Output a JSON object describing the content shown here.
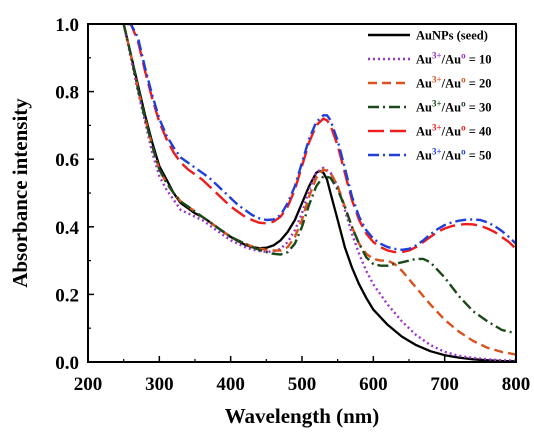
{
  "chart_data": {
    "type": "line",
    "title": "",
    "xlabel": "Wavelength (nm)",
    "ylabel": "Absorbance intensity",
    "xlim": [
      200,
      800
    ],
    "ylim": [
      0.0,
      1.0
    ],
    "xticks": [
      "200",
      "300",
      "400",
      "500",
      "600",
      "700",
      "800"
    ],
    "yticks": [
      "0.0",
      "0.2",
      "0.4",
      "0.6",
      "0.8",
      "1.0"
    ],
    "grid": false,
    "legend_position": "top-right",
    "series": [
      {
        "name": "AuNPs (seed)",
        "color": "#000000",
        "dash": "solid",
        "x": [
          250,
          260,
          270,
          280,
          290,
          300,
          310,
          320,
          330,
          340,
          350,
          360,
          370,
          380,
          390,
          400,
          410,
          420,
          430,
          440,
          450,
          460,
          470,
          480,
          490,
          500,
          510,
          520,
          525,
          530,
          535,
          540,
          550,
          560,
          570,
          580,
          590,
          600,
          620,
          640,
          660,
          680,
          700,
          720,
          740,
          760,
          780,
          800
        ],
        "y": [
          1.0,
          0.91,
          0.82,
          0.73,
          0.65,
          0.58,
          0.54,
          0.5,
          0.47,
          0.455,
          0.44,
          0.43,
          0.415,
          0.4,
          0.385,
          0.37,
          0.358,
          0.347,
          0.34,
          0.337,
          0.338,
          0.345,
          0.36,
          0.385,
          0.42,
          0.47,
          0.52,
          0.56,
          0.565,
          0.56,
          0.54,
          0.5,
          0.42,
          0.34,
          0.28,
          0.23,
          0.19,
          0.155,
          0.11,
          0.075,
          0.05,
          0.032,
          0.02,
          0.013,
          0.008,
          0.005,
          0.003,
          0.002
        ]
      },
      {
        "name": "Au3+/Auo = 10",
        "color": "#9933cc",
        "dash": "dot",
        "x": [
          250,
          260,
          270,
          280,
          290,
          300,
          310,
          320,
          330,
          340,
          350,
          360,
          370,
          380,
          390,
          400,
          410,
          420,
          430,
          440,
          450,
          460,
          470,
          480,
          490,
          500,
          510,
          520,
          530,
          540,
          550,
          560,
          570,
          580,
          590,
          600,
          620,
          640,
          660,
          680,
          700,
          720,
          740,
          760,
          780,
          800
        ],
        "y": [
          1.0,
          0.9,
          0.8,
          0.71,
          0.62,
          0.55,
          0.51,
          0.48,
          0.45,
          0.44,
          0.43,
          0.42,
          0.405,
          0.39,
          0.375,
          0.36,
          0.35,
          0.34,
          0.333,
          0.328,
          0.326,
          0.327,
          0.335,
          0.355,
          0.39,
          0.44,
          0.51,
          0.56,
          0.575,
          0.56,
          0.52,
          0.45,
          0.38,
          0.32,
          0.27,
          0.23,
          0.17,
          0.12,
          0.08,
          0.05,
          0.03,
          0.018,
          0.012,
          0.008,
          0.005,
          0.004
        ]
      },
      {
        "name": "Au3+/Auo = 20",
        "color": "#d9531e",
        "dash": "dash",
        "x": [
          250,
          260,
          270,
          280,
          290,
          300,
          310,
          320,
          330,
          340,
          350,
          360,
          370,
          380,
          390,
          400,
          410,
          420,
          430,
          440,
          450,
          460,
          470,
          480,
          490,
          500,
          510,
          520,
          530,
          540,
          550,
          560,
          570,
          580,
          590,
          600,
          610,
          620,
          630,
          640,
          650,
          660,
          680,
          700,
          720,
          740,
          760,
          780,
          800
        ],
        "y": [
          1.0,
          0.91,
          0.81,
          0.72,
          0.64,
          0.57,
          0.53,
          0.5,
          0.475,
          0.46,
          0.445,
          0.43,
          0.415,
          0.4,
          0.385,
          0.37,
          0.36,
          0.35,
          0.342,
          0.336,
          0.332,
          0.33,
          0.33,
          0.34,
          0.37,
          0.42,
          0.49,
          0.545,
          0.57,
          0.56,
          0.52,
          0.46,
          0.4,
          0.35,
          0.32,
          0.305,
          0.3,
          0.3,
          0.29,
          0.27,
          0.245,
          0.22,
          0.17,
          0.125,
          0.09,
          0.062,
          0.042,
          0.03,
          0.022
        ]
      },
      {
        "name": "Au3+/Auo = 30",
        "color": "#1a4a1a",
        "dash": "dashdot",
        "x": [
          250,
          260,
          270,
          280,
          290,
          300,
          310,
          320,
          330,
          340,
          350,
          360,
          370,
          380,
          390,
          400,
          410,
          420,
          430,
          440,
          450,
          460,
          470,
          480,
          490,
          500,
          510,
          520,
          530,
          540,
          550,
          560,
          570,
          580,
          590,
          600,
          610,
          620,
          630,
          640,
          650,
          660,
          670,
          680,
          700,
          720,
          740,
          760,
          780,
          800
        ],
        "y": [
          1.0,
          0.91,
          0.81,
          0.72,
          0.64,
          0.57,
          0.53,
          0.5,
          0.475,
          0.46,
          0.445,
          0.43,
          0.415,
          0.4,
          0.385,
          0.37,
          0.36,
          0.35,
          0.34,
          0.332,
          0.325,
          0.32,
          0.318,
          0.325,
          0.35,
          0.4,
          0.465,
          0.52,
          0.55,
          0.545,
          0.51,
          0.46,
          0.4,
          0.35,
          0.31,
          0.29,
          0.285,
          0.285,
          0.29,
          0.295,
          0.3,
          0.305,
          0.305,
          0.295,
          0.25,
          0.195,
          0.15,
          0.12,
          0.095,
          0.085
        ]
      },
      {
        "name": "Au3+/Auo = 40",
        "color": "#ee1c1c",
        "dash": "longdash",
        "x": [
          255,
          260,
          270,
          280,
          290,
          300,
          310,
          320,
          330,
          340,
          350,
          360,
          370,
          380,
          390,
          400,
          410,
          420,
          430,
          440,
          450,
          460,
          470,
          480,
          490,
          500,
          510,
          520,
          530,
          535,
          540,
          550,
          560,
          570,
          580,
          590,
          600,
          610,
          620,
          630,
          640,
          650,
          660,
          670,
          680,
          690,
          700,
          710,
          720,
          730,
          740,
          750,
          760,
          770,
          780,
          790,
          800
        ],
        "y": [
          1.0,
          1.0,
          0.95,
          0.86,
          0.78,
          0.71,
          0.66,
          0.62,
          0.59,
          0.57,
          0.555,
          0.54,
          0.52,
          0.5,
          0.48,
          0.46,
          0.445,
          0.43,
          0.42,
          0.412,
          0.41,
          0.415,
          0.43,
          0.46,
          0.51,
          0.58,
          0.65,
          0.7,
          0.72,
          0.715,
          0.7,
          0.64,
          0.56,
          0.48,
          0.42,
          0.38,
          0.355,
          0.34,
          0.33,
          0.325,
          0.325,
          0.33,
          0.34,
          0.355,
          0.37,
          0.385,
          0.395,
          0.402,
          0.406,
          0.408,
          0.407,
          0.403,
          0.395,
          0.385,
          0.37,
          0.355,
          0.335
        ]
      },
      {
        "name": "Au3+/Auo = 50",
        "color": "#1f3fd9",
        "dash": "dashdot",
        "x": [
          255,
          260,
          270,
          280,
          290,
          300,
          310,
          320,
          330,
          340,
          350,
          360,
          370,
          380,
          390,
          400,
          410,
          420,
          430,
          440,
          450,
          460,
          470,
          480,
          490,
          500,
          510,
          520,
          530,
          535,
          540,
          550,
          560,
          570,
          580,
          590,
          600,
          610,
          620,
          630,
          640,
          650,
          660,
          670,
          680,
          690,
          700,
          710,
          720,
          730,
          740,
          750,
          760,
          770,
          780,
          790,
          800
        ],
        "y": [
          1.0,
          1.0,
          0.96,
          0.87,
          0.79,
          0.72,
          0.67,
          0.635,
          0.605,
          0.59,
          0.575,
          0.56,
          0.545,
          0.525,
          0.505,
          0.485,
          0.465,
          0.45,
          0.435,
          0.425,
          0.42,
          0.422,
          0.435,
          0.47,
          0.52,
          0.59,
          0.66,
          0.71,
          0.73,
          0.73,
          0.715,
          0.655,
          0.575,
          0.49,
          0.43,
          0.39,
          0.365,
          0.35,
          0.34,
          0.335,
          0.332,
          0.335,
          0.345,
          0.36,
          0.378,
          0.393,
          0.405,
          0.413,
          0.418,
          0.421,
          0.422,
          0.42,
          0.413,
          0.402,
          0.388,
          0.37,
          0.35
        ]
      }
    ]
  }
}
